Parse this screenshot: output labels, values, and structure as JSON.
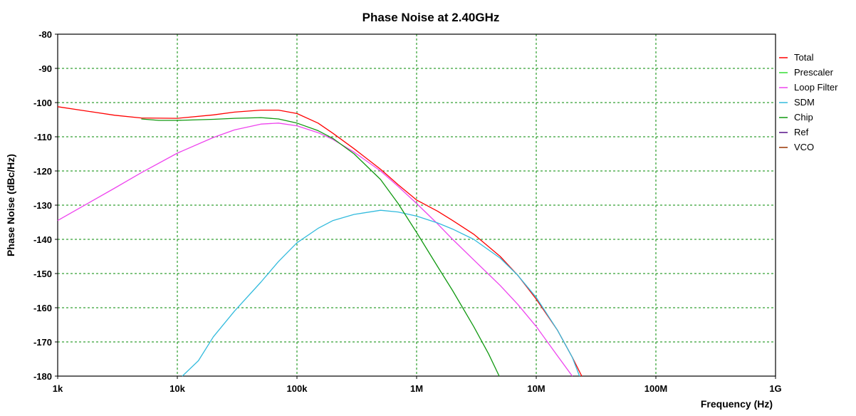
{
  "chart_data": {
    "type": "line",
    "title": "Phase Noise at 2.40GHz",
    "xlabel": "Frequency (Hz)",
    "ylabel": "Phase Noise (dBc/Hz)",
    "x_scale": "log",
    "xlim": [
      1000,
      1000000000
    ],
    "ylim": [
      -180,
      -80
    ],
    "grid": true,
    "legend_position": "right",
    "x_tick_values": [
      1000,
      10000,
      100000,
      1000000,
      10000000,
      100000000,
      1000000000
    ],
    "x_tick_labels": [
      "1k",
      "10k",
      "100k",
      "1M",
      "10M",
      "100M",
      "1G"
    ],
    "y_ticks": [
      -80,
      -90,
      -100,
      -110,
      -120,
      -130,
      -140,
      -150,
      -160,
      -170,
      -180
    ],
    "y_tick_labels": [
      "-80",
      "-90",
      "-100",
      "-110",
      "-120",
      "-130",
      "-140",
      "-150",
      "-160",
      "-170",
      "-180"
    ],
    "series": [
      {
        "name": "Total",
        "color": "#ff0000",
        "points": [
          [
            1000,
            -101.2
          ],
          [
            2000,
            -102.8
          ],
          [
            3000,
            -103.7
          ],
          [
            5000,
            -104.5
          ],
          [
            10000,
            -104.6
          ],
          [
            20000,
            -103.6
          ],
          [
            30000,
            -102.8
          ],
          [
            50000,
            -102.2
          ],
          [
            70000,
            -102.2
          ],
          [
            100000,
            -103.2
          ],
          [
            150000,
            -106.0
          ],
          [
            200000,
            -109.0
          ],
          [
            300000,
            -113.5
          ],
          [
            500000,
            -119.5
          ],
          [
            700000,
            -124.0
          ],
          [
            1000000,
            -128.5
          ],
          [
            1500000,
            -131.8
          ],
          [
            2000000,
            -134.5
          ],
          [
            3000000,
            -138.5
          ],
          [
            5000000,
            -145.0
          ],
          [
            7000000,
            -150.5
          ],
          [
            10000000,
            -157.5
          ],
          [
            15000000,
            -166.5
          ],
          [
            20000000,
            -174.5
          ],
          [
            24000000,
            -180.0
          ]
        ]
      },
      {
        "name": "Prescaler",
        "color": "#33dd33",
        "points": []
      },
      {
        "name": "Loop Filter",
        "color": "#ee44ee",
        "points": [
          [
            1000,
            -134.5
          ],
          [
            2000,
            -128.5
          ],
          [
            3000,
            -125.0
          ],
          [
            5000,
            -120.5
          ],
          [
            10000,
            -114.8
          ],
          [
            20000,
            -110.2
          ],
          [
            30000,
            -108.0
          ],
          [
            50000,
            -106.3
          ],
          [
            70000,
            -106.0
          ],
          [
            100000,
            -106.8
          ],
          [
            150000,
            -108.8
          ],
          [
            200000,
            -110.8
          ],
          [
            300000,
            -114.5
          ],
          [
            500000,
            -120.0
          ],
          [
            700000,
            -124.5
          ],
          [
            1000000,
            -129.5
          ],
          [
            1500000,
            -135.5
          ],
          [
            2000000,
            -140.0
          ],
          [
            3000000,
            -146.0
          ],
          [
            5000000,
            -153.5
          ],
          [
            7000000,
            -159.0
          ],
          [
            10000000,
            -165.5
          ],
          [
            15000000,
            -174.0
          ],
          [
            20000000,
            -180.0
          ]
        ]
      },
      {
        "name": "SDM",
        "color": "#33bbdd",
        "points": [
          [
            11000,
            -180.0
          ],
          [
            15000,
            -175.5
          ],
          [
            20000,
            -168.5
          ],
          [
            30000,
            -161.0
          ],
          [
            50000,
            -152.5
          ],
          [
            70000,
            -146.5
          ],
          [
            100000,
            -141.0
          ],
          [
            150000,
            -136.8
          ],
          [
            200000,
            -134.5
          ],
          [
            300000,
            -132.7
          ],
          [
            500000,
            -131.5
          ],
          [
            700000,
            -132.0
          ],
          [
            1000000,
            -133.2
          ],
          [
            1500000,
            -135.2
          ],
          [
            2000000,
            -137.0
          ],
          [
            3000000,
            -140.0
          ],
          [
            5000000,
            -145.5
          ],
          [
            7000000,
            -150.5
          ],
          [
            10000000,
            -157.0
          ],
          [
            15000000,
            -166.5
          ],
          [
            20000000,
            -174.5
          ],
          [
            23000000,
            -180.0
          ]
        ]
      },
      {
        "name": "Chip",
        "color": "#119911",
        "points": [
          [
            5000,
            -104.8
          ],
          [
            7000,
            -105.2
          ],
          [
            10000,
            -105.2
          ],
          [
            20000,
            -104.9
          ],
          [
            30000,
            -104.6
          ],
          [
            50000,
            -104.4
          ],
          [
            70000,
            -104.8
          ],
          [
            100000,
            -106.0
          ],
          [
            150000,
            -108.2
          ],
          [
            200000,
            -110.5
          ],
          [
            300000,
            -115.0
          ],
          [
            500000,
            -122.5
          ],
          [
            700000,
            -129.5
          ],
          [
            1000000,
            -138.0
          ],
          [
            1500000,
            -148.0
          ],
          [
            2000000,
            -155.0
          ],
          [
            3000000,
            -165.5
          ],
          [
            4000000,
            -173.5
          ],
          [
            4900000,
            -180.0
          ]
        ]
      },
      {
        "name": "Ref",
        "color": "#551188",
        "points": []
      },
      {
        "name": "VCO",
        "color": "#993300",
        "points": []
      }
    ]
  }
}
